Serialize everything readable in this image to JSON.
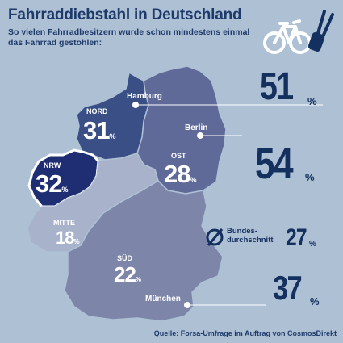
{
  "title": "Fahrraddiebstahl in Deutschland",
  "subtitle": "So vielen Fahrradbesitzern wurde schon mindestens einmal das Fahrrad gestohlen:",
  "source": "Quelle: Forsa-Umfrage im Auftrag von CosmosDirekt",
  "colors": {
    "background": "#aec0d4",
    "dark_blue": "#14305f",
    "nord": "#3a4f86",
    "ost": "#5f6a99",
    "nrw": "#1f2e73",
    "mitte": "#a8b2cb",
    "sued": "#7d85a9",
    "label_white": "#ffffff"
  },
  "regions": [
    {
      "key": "nord",
      "name": "NORD",
      "value": "31",
      "unit": "%"
    },
    {
      "key": "nrw",
      "name": "NRW",
      "value": "32",
      "unit": "%"
    },
    {
      "key": "ost",
      "name": "OST",
      "value": "28",
      "unit": "%"
    },
    {
      "key": "mitte",
      "name": "MITTE",
      "value": "18",
      "unit": "%"
    },
    {
      "key": "sued",
      "name": "SÜD",
      "value": "22",
      "unit": "%"
    }
  ],
  "cities": [
    {
      "name": "Hamburg",
      "value": "51",
      "unit": "%"
    },
    {
      "name": "Berlin",
      "value": "54",
      "unit": "%"
    },
    {
      "name": "München",
      "value": "37",
      "unit": "%"
    }
  ],
  "average": {
    "symbol": "Ø",
    "label_line1": "Bundes-",
    "label_line2": "durchschnitt",
    "value": "27",
    "unit": "%"
  },
  "icons": [
    "bicycle-icon",
    "bolt-cutter-icon",
    "average-symbol-icon"
  ]
}
